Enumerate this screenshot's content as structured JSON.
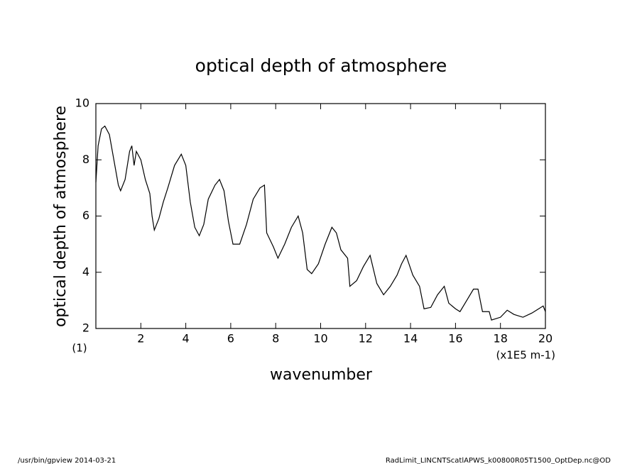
{
  "chart_data": {
    "type": "line",
    "title": "optical depth of atmosphere",
    "ylabel": "optical depth of atmosphere",
    "xlabel": "wavenumber",
    "y_unit": "(1)",
    "x_unit": "(x1E5 m-1)",
    "color": "#000000",
    "x": [
      0,
      0.1,
      0.25,
      0.4,
      0.6,
      0.8,
      1.0,
      1.1,
      1.3,
      1.5,
      1.6,
      1.7,
      1.8,
      2.0,
      2.2,
      2.4,
      2.5,
      2.6,
      2.8,
      3.0,
      3.2,
      3.5,
      3.8,
      4.0,
      4.2,
      4.4,
      4.6,
      4.8,
      5.0,
      5.3,
      5.5,
      5.7,
      5.9,
      6.1,
      6.4,
      6.7,
      7.0,
      7.3,
      7.5,
      7.6,
      7.9,
      8.1,
      8.4,
      8.7,
      9.0,
      9.2,
      9.4,
      9.6,
      9.9,
      10.2,
      10.5,
      10.7,
      10.9,
      11.2,
      11.3,
      11.6,
      11.9,
      12.2,
      12.5,
      12.8,
      13.1,
      13.4,
      13.6,
      13.8,
      14.1,
      14.4,
      14.6,
      14.9,
      15.2,
      15.5,
      15.7,
      16.0,
      16.2,
      16.5,
      16.8,
      17.0,
      17.2,
      17.5,
      17.6,
      18.0,
      18.3,
      18.6,
      19.0,
      19.4,
      19.7,
      19.9,
      20.0
    ],
    "values": [
      7.2,
      8.5,
      9.1,
      9.2,
      8.9,
      8.0,
      7.1,
      6.9,
      7.3,
      8.3,
      8.5,
      7.8,
      8.3,
      8.0,
      7.3,
      6.8,
      6.0,
      5.5,
      5.9,
      6.5,
      7.0,
      7.8,
      8.2,
      7.8,
      6.5,
      5.6,
      5.3,
      5.7,
      6.6,
      7.1,
      7.3,
      6.9,
      5.8,
      5.0,
      5.0,
      5.7,
      6.6,
      7.0,
      7.1,
      5.4,
      4.9,
      4.5,
      5.0,
      5.6,
      6.0,
      5.4,
      4.1,
      3.95,
      4.3,
      5.0,
      5.6,
      5.4,
      4.8,
      4.5,
      3.5,
      3.7,
      4.2,
      4.6,
      3.6,
      3.2,
      3.5,
      3.9,
      4.3,
      4.6,
      3.9,
      3.5,
      2.7,
      2.75,
      3.2,
      3.5,
      2.9,
      2.7,
      2.6,
      3.0,
      3.4,
      3.4,
      2.6,
      2.6,
      2.3,
      2.4,
      2.65,
      2.5,
      2.4,
      2.55,
      2.7,
      2.8,
      2.6
    ],
    "xlim": [
      0,
      20
    ],
    "xticks": [
      2,
      4,
      6,
      8,
      10,
      12,
      14,
      16,
      18,
      20
    ],
    "ylim": [
      2,
      10
    ],
    "yticks": [
      2,
      4,
      6,
      8,
      10
    ]
  },
  "footer": {
    "left": "/usr/bin/gpview  2014-03-21",
    "right": "RadLimit_LINCNTScatlAPWS_k00800R05T1500_OptDep.nc@OD"
  }
}
